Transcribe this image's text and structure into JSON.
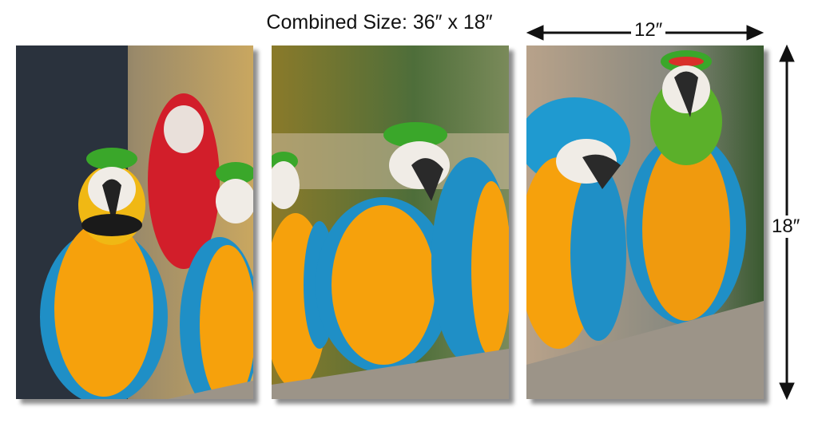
{
  "title": "Combined Size: 36″ x 18″",
  "dimensions": {
    "panel_width": "12″",
    "height": "18″"
  },
  "panels": [
    {
      "subject": "blue-and-gold macaws with red macaw in background"
    },
    {
      "subject": "blue-and-gold macaws perched on log"
    },
    {
      "subject": "blue-and-gold macaw and green hybrid macaw on log"
    }
  ],
  "colors": {
    "macaw_blue": "#1f9ad0",
    "macaw_yellow": "#f5a40c",
    "macaw_green": "#3fae2a",
    "red_macaw": "#d8202a",
    "log": "#9c9488"
  }
}
